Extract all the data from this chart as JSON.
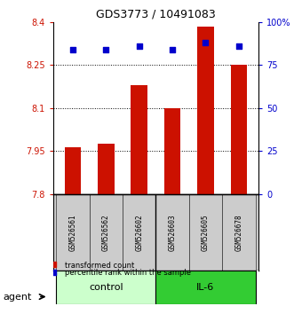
{
  "title": "GDS3773 / 10491083",
  "samples": [
    "GSM526561",
    "GSM526562",
    "GSM526602",
    "GSM526603",
    "GSM526605",
    "GSM526678"
  ],
  "bar_values": [
    7.965,
    7.975,
    8.18,
    8.1,
    8.385,
    8.25
  ],
  "percentile_values": [
    84,
    84,
    86,
    84,
    88,
    86
  ],
  "ylim_left": [
    7.8,
    8.4
  ],
  "ylim_right": [
    0,
    100
  ],
  "yticks_left": [
    7.8,
    7.95,
    8.1,
    8.25,
    8.4
  ],
  "ytick_labels_left": [
    "7.8",
    "7.95",
    "8.1",
    "8.25",
    "8.4"
  ],
  "yticks_right": [
    0,
    25,
    50,
    75,
    100
  ],
  "ytick_labels_right": [
    "0",
    "25",
    "50",
    "75",
    "100%"
  ],
  "grid_values": [
    7.95,
    8.1,
    8.25
  ],
  "bar_color": "#cc1100",
  "dot_color": "#0000cc",
  "bar_bottom": 7.8,
  "control_samples": [
    "GSM526561",
    "GSM526562",
    "GSM526602"
  ],
  "il6_samples": [
    "GSM526603",
    "GSM526605",
    "GSM526678"
  ],
  "control_color": "#ccffcc",
  "il6_color": "#33cc33",
  "label_color_left": "#cc1100",
  "label_color_right": "#0000cc",
  "agent_label": "agent",
  "control_label": "control",
  "il6_label": "IL-6",
  "legend_bar_label": "transformed count",
  "legend_dot_label": "percentile rank within the sample",
  "bar_width": 0.5,
  "sample_box_color": "#cccccc",
  "sample_box_edge": "#333333"
}
